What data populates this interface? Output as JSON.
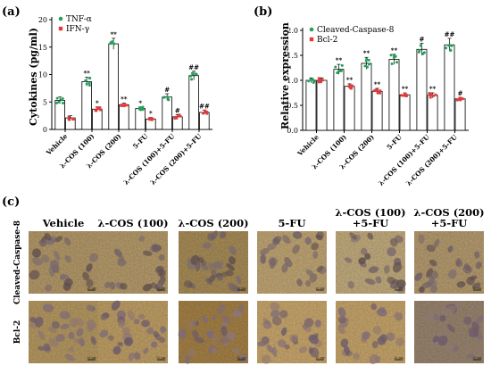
{
  "colors": {
    "series1": "#22a05a",
    "series2": "#e33b3b",
    "bar_fill": "#ffffff",
    "axis": "#000000"
  },
  "chart_data": [
    {
      "panel": "(a)",
      "type": "bar",
      "categories": [
        "Vehicle",
        "λ-COS (100)",
        "λ-COS (200)",
        "5-FU",
        "λ-COS (100)+5-FU",
        "λ-COS (200)+5-FU"
      ],
      "ylabel": "Cytokines (pg/ml)",
      "ylim": [
        0,
        20
      ],
      "yticks": [
        "0",
        "5",
        "10",
        "15",
        "20"
      ],
      "series": [
        {
          "name": "TNF-α",
          "color": "#22a05a",
          "values": [
            5.3,
            8.7,
            15.6,
            3.8,
            5.9,
            9.8
          ],
          "errors": [
            0.6,
            0.8,
            1.0,
            0.3,
            0.6,
            0.8
          ],
          "marks": [
            "",
            "**",
            "**",
            "*",
            "#",
            "##"
          ]
        },
        {
          "name": "IFN-γ",
          "color": "#e33b3b",
          "values": [
            2.1,
            3.7,
            4.5,
            1.9,
            2.3,
            3.1
          ],
          "errors": [
            0.4,
            0.4,
            0.3,
            0.3,
            0.4,
            0.4
          ],
          "marks": [
            "",
            "*",
            "**",
            "*",
            "#",
            "##"
          ]
        }
      ],
      "legend": "top-left"
    },
    {
      "panel": "(b)",
      "type": "bar",
      "categories": [
        "Vehicle",
        "λ-COS (100)",
        "λ-COS (200)",
        "5-FU",
        "λ-COS (100)+5-FU",
        "λ-COS (200)+5-FU"
      ],
      "ylabel": "Relative expression",
      "ylim": [
        0,
        2.0
      ],
      "yticks": [
        "0.0",
        "0.5",
        "1.0",
        "1.5",
        "2.0"
      ],
      "series": [
        {
          "name": "Cleaved-Caspase-8",
          "color": "#22a05a",
          "values": [
            1.0,
            1.22,
            1.34,
            1.42,
            1.62,
            1.71
          ],
          "errors": [
            0.05,
            0.1,
            0.12,
            0.1,
            0.12,
            0.13
          ],
          "marks": [
            "",
            "**",
            "**",
            "**",
            "#",
            "##"
          ]
        },
        {
          "name": "Bcl-2",
          "color": "#e33b3b",
          "values": [
            1.0,
            0.88,
            0.78,
            0.71,
            0.7,
            0.63
          ],
          "errors": [
            0.05,
            0.05,
            0.06,
            0.04,
            0.05,
            0.03
          ],
          "marks": [
            "",
            "**",
            "**",
            "**",
            "**",
            "#"
          ]
        }
      ],
      "legend": "top-left"
    }
  ],
  "images": {
    "panel": "(c)",
    "columns": [
      "Vehicle",
      "λ-COS (100)",
      "λ-COS (200)",
      "5-FU",
      "λ-COS (100)\n+5-FU",
      "λ-COS (200)\n+5-FU"
    ],
    "rows": [
      "Cleaved-Caspase-8",
      "Bcl-2"
    ],
    "scale_label": "20 μm"
  }
}
